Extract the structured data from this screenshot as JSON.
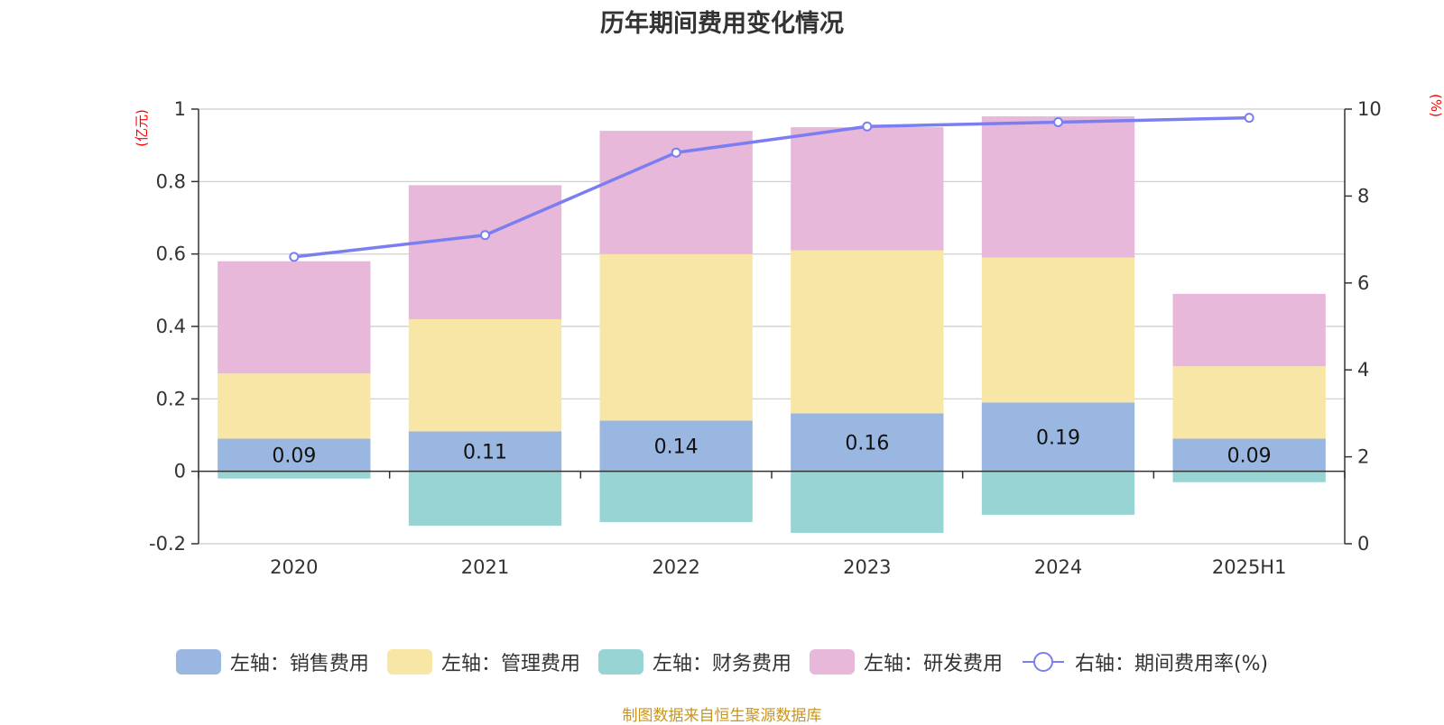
{
  "chart_data": {
    "type": "bar",
    "title": "历年期间费用变化情况",
    "categories": [
      "2020",
      "2021",
      "2022",
      "2023",
      "2024",
      "2025H1"
    ],
    "series": [
      {
        "name": "左轴：销售费用",
        "type": "bar",
        "axis": "left",
        "color": "#9ab7e1",
        "values": [
          0.09,
          0.11,
          0.14,
          0.16,
          0.19,
          0.09
        ],
        "show_labels": true
      },
      {
        "name": "左轴：管理费用",
        "type": "bar",
        "axis": "left",
        "color": "#f8e6a6",
        "values": [
          0.18,
          0.31,
          0.46,
          0.45,
          0.4,
          0.2
        ]
      },
      {
        "name": "左轴：财务费用",
        "type": "bar",
        "axis": "left",
        "color": "#98d4d4",
        "values": [
          -0.02,
          -0.15,
          -0.14,
          -0.17,
          -0.12,
          -0.03
        ]
      },
      {
        "name": "左轴：研发费用",
        "type": "bar",
        "axis": "left",
        "color": "#e7b8d9",
        "values": [
          0.31,
          0.37,
          0.34,
          0.34,
          0.39,
          0.2
        ]
      },
      {
        "name": "右轴：期间费用率(%)",
        "type": "line",
        "axis": "right",
        "color": "#7a7ef0",
        "values": [
          6.6,
          7.1,
          9.0,
          9.6,
          9.7,
          9.8
        ]
      }
    ],
    "left_axis": {
      "unit": "(亿元)",
      "ylim": [
        -0.2,
        1.0
      ],
      "ticks": [
        -0.2,
        0,
        0.2,
        0.4,
        0.6,
        0.8,
        1
      ],
      "tick_labels": [
        "-0.2",
        "0",
        "0.2",
        "0.4",
        "0.6",
        "0.8",
        "1"
      ]
    },
    "right_axis": {
      "unit": "(%)",
      "ylim": [
        0,
        10
      ],
      "ticks": [
        0,
        2,
        4,
        6,
        8,
        10
      ],
      "tick_labels": [
        "0",
        "2",
        "4",
        "6",
        "8",
        "10"
      ]
    },
    "grid": true,
    "legend_position": "bottom",
    "source": "制图数据来自恒生聚源数据库"
  }
}
